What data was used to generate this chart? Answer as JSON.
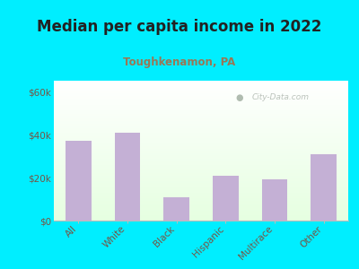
{
  "title": "Median per capita income in 2022",
  "subtitle": "Toughkenamon, PA",
  "categories": [
    "All",
    "White",
    "Black",
    "Hispanic",
    "Multirace",
    "Other"
  ],
  "values": [
    37000,
    41000,
    11000,
    21000,
    19000,
    31000
  ],
  "bar_color": "#c4b0d5",
  "background_color": "#00eeff",
  "title_color": "#222222",
  "subtitle_color": "#997755",
  "tick_color": "#775544",
  "watermark_text": "City-Data.com",
  "ylim": [
    0,
    65000
  ],
  "yticks": [
    0,
    20000,
    40000,
    60000
  ],
  "ytick_labels": [
    "$0",
    "$20k",
    "$40k",
    "$60k"
  ],
  "title_fontsize": 12,
  "subtitle_fontsize": 8.5,
  "bar_width": 0.52
}
